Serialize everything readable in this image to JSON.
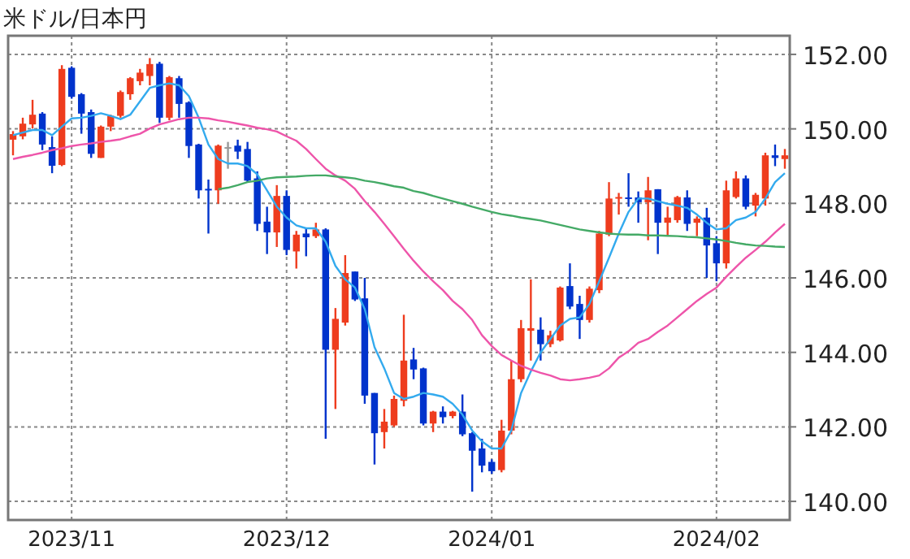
{
  "chart_data": {
    "type": "candlestick",
    "title": "米ドル/日本円",
    "categories": [
      null,
      null,
      null,
      null,
      null,
      null,
      "2023/11",
      null,
      null,
      null,
      null,
      null,
      null,
      null,
      null,
      null,
      null,
      null,
      null,
      null,
      null,
      null,
      null,
      null,
      null,
      null,
      null,
      null,
      "2023/12",
      null,
      null,
      null,
      null,
      null,
      null,
      null,
      null,
      null,
      null,
      null,
      null,
      null,
      null,
      null,
      null,
      null,
      null,
      null,
      null,
      "2024/01",
      null,
      null,
      null,
      null,
      null,
      null,
      null,
      null,
      null,
      null,
      null,
      null,
      null,
      null,
      null,
      null,
      null,
      null,
      null,
      null,
      null,
      null,
      "2024/02",
      null,
      null,
      null,
      null,
      null,
      null,
      null
    ],
    "ohlc": [
      [
        149.71,
        149.94,
        149.29,
        149.86
      ],
      [
        149.8,
        150.3,
        149.72,
        150.14
      ],
      [
        150.12,
        150.78,
        150.01,
        150.38
      ],
      [
        150.41,
        150.45,
        149.43,
        149.58
      ],
      [
        149.51,
        149.8,
        148.81,
        149.01
      ],
      [
        149.03,
        151.71,
        149.0,
        151.61
      ],
      [
        151.64,
        151.68,
        150.81,
        150.86
      ],
      [
        150.93,
        150.96,
        149.87,
        150.41
      ],
      [
        150.45,
        150.52,
        149.22,
        149.33
      ],
      [
        149.22,
        150.09,
        149.22,
        150.06
      ],
      [
        150.06,
        150.38,
        149.94,
        150.35
      ],
      [
        150.35,
        151.03,
        150.3,
        150.99
      ],
      [
        150.93,
        151.39,
        150.78,
        151.36
      ],
      [
        151.28,
        151.61,
        151.17,
        151.51
      ],
      [
        151.42,
        151.9,
        151.17,
        151.74
      ],
      [
        151.75,
        151.8,
        150.16,
        150.3
      ],
      [
        150.3,
        151.42,
        150.23,
        151.39
      ],
      [
        151.36,
        151.42,
        150.3,
        150.67
      ],
      [
        150.71,
        150.74,
        149.22,
        149.54
      ],
      [
        149.58,
        149.6,
        148.13,
        148.35
      ],
      [
        148.39,
        148.64,
        147.19,
        148.35
      ],
      [
        148.35,
        149.58,
        147.99,
        149.55
      ],
      [
        149.51,
        149.65,
        148.93,
        149.51
      ],
      [
        149.55,
        149.71,
        149.19,
        149.39
      ],
      [
        149.46,
        149.65,
        148.57,
        148.61
      ],
      [
        148.67,
        148.86,
        147.26,
        147.45
      ],
      [
        147.51,
        147.91,
        146.64,
        147.22
      ],
      [
        147.22,
        148.49,
        146.83,
        148.2
      ],
      [
        148.2,
        148.35,
        146.61,
        146.75
      ],
      [
        146.71,
        147.26,
        146.25,
        147.16
      ],
      [
        147.19,
        147.33,
        146.58,
        147.09
      ],
      [
        147.12,
        147.48,
        147.07,
        147.3
      ],
      [
        147.3,
        147.33,
        141.68,
        144.07
      ],
      [
        144.07,
        145.19,
        142.48,
        144.9
      ],
      [
        144.8,
        146.61,
        144.72,
        146.13
      ],
      [
        146.17,
        146.17,
        145.38,
        145.42
      ],
      [
        145.45,
        146.0,
        142.62,
        142.84
      ],
      [
        142.91,
        142.91,
        140.99,
        141.83
      ],
      [
        141.86,
        142.48,
        141.42,
        142.14
      ],
      [
        142.04,
        142.84,
        142.0,
        142.75
      ],
      [
        142.7,
        145.01,
        142.55,
        143.78
      ],
      [
        143.81,
        144.12,
        143.28,
        143.54
      ],
      [
        143.57,
        143.59,
        142.04,
        142.09
      ],
      [
        142.09,
        142.43,
        141.86,
        142.41
      ],
      [
        142.41,
        142.55,
        142.09,
        142.26
      ],
      [
        142.29,
        142.43,
        142.23,
        142.41
      ],
      [
        142.41,
        142.87,
        141.75,
        141.8
      ],
      [
        141.83,
        141.86,
        140.26,
        141.36
      ],
      [
        141.42,
        141.68,
        140.78,
        140.96
      ],
      [
        141.06,
        141.13,
        140.74,
        140.81
      ],
      [
        140.84,
        142.19,
        140.78,
        141.9
      ],
      [
        141.9,
        143.78,
        141.8,
        143.28
      ],
      [
        143.28,
        144.87,
        143.2,
        144.65
      ],
      [
        144.58,
        145.96,
        143.78,
        144.65
      ],
      [
        144.61,
        144.94,
        143.78,
        144.22
      ],
      [
        144.22,
        144.58,
        144.14,
        144.46
      ],
      [
        144.32,
        145.77,
        144.29,
        145.74
      ],
      [
        145.78,
        146.39,
        145.16,
        145.23
      ],
      [
        145.3,
        145.52,
        144.36,
        144.87
      ],
      [
        144.87,
        145.77,
        144.8,
        145.71
      ],
      [
        145.67,
        147.26,
        145.59,
        147.19
      ],
      [
        147.16,
        148.57,
        147.12,
        148.13
      ],
      [
        148.13,
        148.28,
        147.7,
        148.17
      ],
      [
        148.16,
        148.81,
        147.91,
        148.13
      ],
      [
        148.16,
        148.32,
        147.48,
        148.03
      ],
      [
        148.03,
        148.71,
        147.01,
        148.35
      ],
      [
        148.38,
        148.38,
        146.64,
        147.48
      ],
      [
        147.48,
        147.91,
        147.12,
        147.62
      ],
      [
        147.55,
        148.2,
        147.48,
        148.17
      ],
      [
        148.16,
        148.35,
        147.26,
        147.45
      ],
      [
        147.48,
        147.65,
        147.12,
        147.59
      ],
      [
        147.62,
        147.88,
        146.0,
        146.87
      ],
      [
        146.93,
        147.12,
        145.91,
        146.39
      ],
      [
        146.39,
        148.61,
        146.25,
        148.35
      ],
      [
        148.17,
        148.86,
        148.13,
        148.67
      ],
      [
        148.67,
        148.75,
        147.84,
        147.91
      ],
      [
        147.94,
        148.28,
        147.65,
        148.23
      ],
      [
        148.13,
        149.36,
        147.94,
        149.29
      ],
      [
        149.29,
        149.58,
        149.0,
        149.22
      ],
      [
        149.19,
        149.46,
        148.93,
        149.29
      ]
    ],
    "colors": [
      "#ee3c1e",
      "#ee3c1e",
      "#ee3c1e",
      "#0033cc",
      "#0033cc",
      "#ee3c1e",
      "#0033cc",
      "#0033cc",
      "#0033cc",
      "#ee3c1e",
      "#ee3c1e",
      "#ee3c1e",
      "#ee3c1e",
      "#ee3c1e",
      "#ee3c1e",
      "#0033cc",
      "#ee3c1e",
      "#0033cc",
      "#0033cc",
      "#0033cc",
      "#0033cc",
      "#ee3c1e",
      "#999999",
      "#0033cc",
      "#0033cc",
      "#0033cc",
      "#0033cc",
      "#ee3c1e",
      "#0033cc",
      "#ee3c1e",
      "#0033cc",
      "#ee3c1e",
      "#0033cc",
      "#ee3c1e",
      "#ee3c1e",
      "#0033cc",
      "#0033cc",
      "#0033cc",
      "#ee3c1e",
      "#ee3c1e",
      "#ee3c1e",
      "#0033cc",
      "#0033cc",
      "#ee3c1e",
      "#0033cc",
      "#ee3c1e",
      "#0033cc",
      "#0033cc",
      "#0033cc",
      "#0033cc",
      "#ee3c1e",
      "#ee3c1e",
      "#ee3c1e",
      "#ee3c1e",
      "#0033cc",
      "#ee3c1e",
      "#ee3c1e",
      "#0033cc",
      "#0033cc",
      "#ee3c1e",
      "#ee3c1e",
      "#ee3c1e",
      "#ee3c1e",
      "#0033cc",
      "#0033cc",
      "#ee3c1e",
      "#0033cc",
      "#ee3c1e",
      "#ee3c1e",
      "#0033cc",
      "#ee3c1e",
      "#0033cc",
      "#0033cc",
      "#ee3c1e",
      "#ee3c1e",
      "#0033cc",
      "#ee3c1e",
      "#ee3c1e",
      "#0033cc",
      "#ee3c1e"
    ],
    "series": [
      {
        "type": "line",
        "color": "#33aaee",
        "values": [
          149.83,
          149.9,
          149.97,
          149.97,
          149.83,
          150.06,
          150.28,
          150.3,
          150.35,
          150.42,
          150.35,
          150.26,
          150.38,
          150.74,
          151.1,
          151.17,
          151.22,
          151.17,
          150.88,
          150.3,
          149.58,
          149.19,
          149.07,
          149.07,
          149.0,
          148.78,
          148.35,
          147.91,
          147.62,
          147.41,
          147.33,
          147.33,
          146.97,
          146.32,
          145.96,
          145.74,
          145.16,
          144.14,
          143.57,
          142.91,
          142.75,
          142.81,
          142.91,
          142.87,
          142.81,
          142.62,
          142.33,
          141.9,
          141.61,
          141.42,
          141.42,
          141.9,
          142.91,
          143.49,
          144.0,
          144.36,
          144.72,
          144.9,
          144.94,
          145.3,
          145.91,
          146.54,
          147.19,
          147.77,
          148.13,
          148.13,
          148.06,
          147.99,
          147.94,
          147.88,
          147.7,
          147.48,
          147.3,
          147.33,
          147.55,
          147.62,
          147.77,
          148.13,
          148.57,
          148.81
        ]
      },
      {
        "type": "line",
        "color": "#ee55aa",
        "values": [
          149.19,
          149.25,
          149.3,
          149.36,
          149.43,
          149.48,
          149.54,
          149.58,
          149.61,
          149.65,
          149.68,
          149.72,
          149.8,
          149.87,
          150.01,
          150.12,
          150.19,
          150.26,
          150.3,
          150.3,
          150.28,
          150.23,
          150.19,
          150.14,
          150.09,
          150.03,
          149.99,
          149.93,
          149.8,
          149.68,
          149.46,
          149.19,
          148.93,
          148.75,
          148.61,
          148.39,
          148.06,
          147.77,
          147.45,
          147.12,
          146.78,
          146.46,
          146.17,
          145.91,
          145.67,
          145.38,
          145.16,
          144.87,
          144.46,
          144.17,
          143.93,
          143.78,
          143.64,
          143.54,
          143.45,
          143.38,
          143.28,
          143.25,
          143.28,
          143.32,
          143.38,
          143.57,
          143.86,
          144.03,
          144.26,
          144.36,
          144.55,
          144.72,
          144.94,
          145.16,
          145.38,
          145.57,
          145.74,
          146.03,
          146.29,
          146.54,
          146.75,
          146.97,
          147.22,
          147.45
        ]
      },
      {
        "type": "line",
        "color": "#44aa66",
        "values": [
          null,
          null,
          null,
          null,
          null,
          null,
          null,
          null,
          null,
          null,
          null,
          null,
          null,
          null,
          null,
          null,
          null,
          null,
          null,
          null,
          null,
          148.38,
          148.42,
          148.49,
          148.57,
          148.61,
          148.67,
          148.7,
          148.71,
          148.72,
          148.74,
          148.75,
          148.75,
          148.72,
          148.7,
          148.67,
          148.61,
          148.57,
          148.52,
          148.46,
          148.42,
          148.33,
          148.28,
          148.2,
          148.13,
          148.06,
          147.99,
          147.91,
          147.84,
          147.77,
          147.71,
          147.67,
          147.62,
          147.58,
          147.54,
          147.48,
          147.42,
          147.36,
          147.3,
          147.26,
          147.22,
          147.19,
          147.17,
          147.16,
          147.16,
          147.14,
          147.14,
          147.13,
          147.12,
          147.1,
          147.09,
          147.06,
          147.03,
          146.99,
          146.94,
          146.9,
          146.87,
          146.86,
          146.84,
          146.83
        ]
      }
    ],
    "ylim": [
      139.5,
      152.5
    ],
    "yticks": [
      {
        "value": 140,
        "label": "140.00"
      },
      {
        "value": 142,
        "label": "142.00"
      },
      {
        "value": 144,
        "label": "144.00"
      },
      {
        "value": 146,
        "label": "146.00"
      },
      {
        "value": 148,
        "label": "148.00"
      },
      {
        "value": 150,
        "label": "150.00"
      },
      {
        "value": 152,
        "label": "152.00"
      }
    ],
    "grid": true
  }
}
